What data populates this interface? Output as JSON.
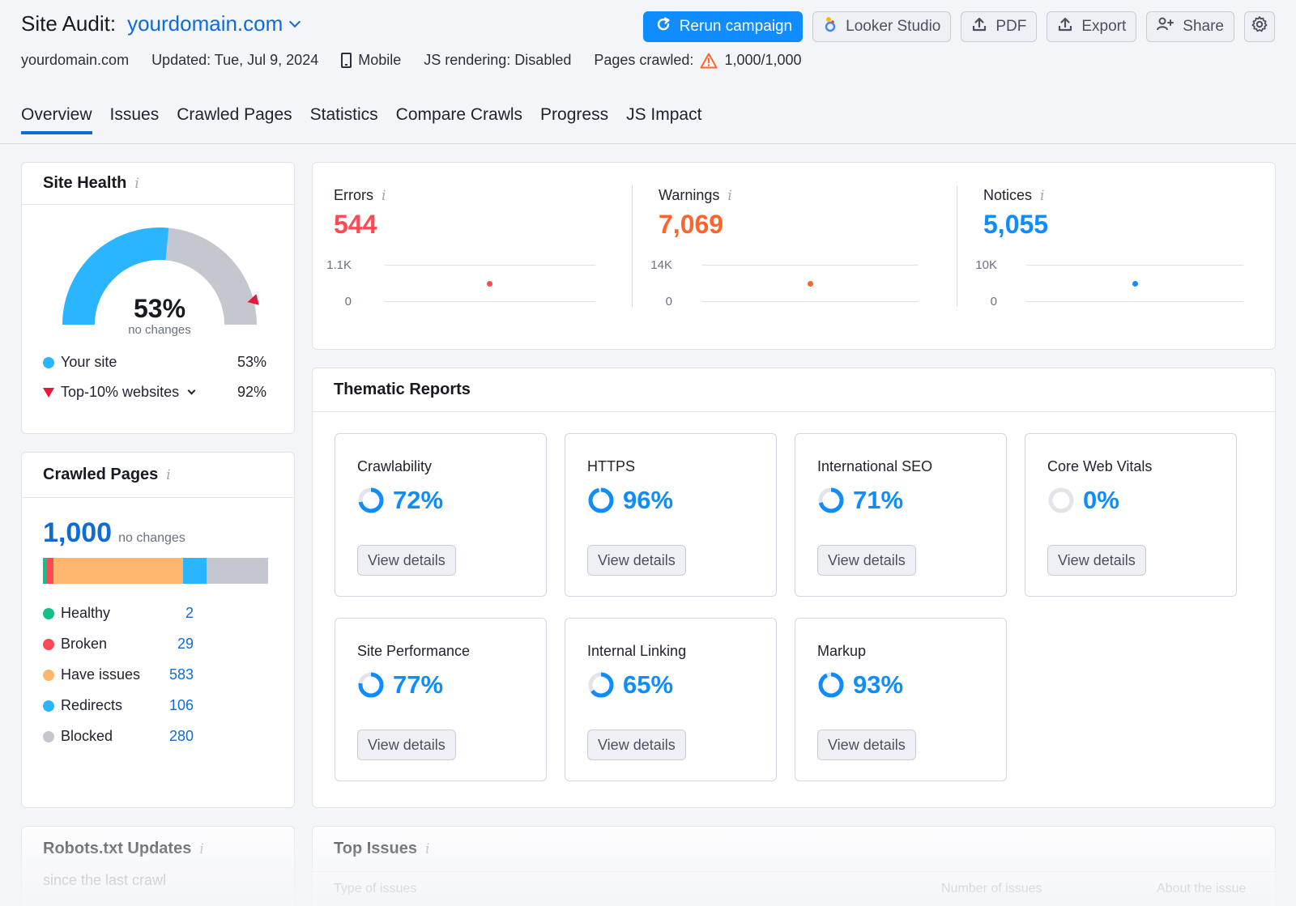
{
  "header": {
    "title": "Site Audit:",
    "domain": "yourdomain.com",
    "meta": {
      "domain": "yourdomain.com",
      "updated": "Updated: Tue, Jul 9, 2024",
      "device": "Mobile",
      "js_rendering": "JS rendering: Disabled",
      "pages_crawled_label": "Pages crawled:",
      "pages_crawled_value": "1,000/1,000"
    },
    "toolbar": {
      "rerun": "Rerun campaign",
      "looker": "Looker Studio",
      "pdf": "PDF",
      "export": "Export",
      "share": "Share"
    },
    "tabs": [
      "Overview",
      "Issues",
      "Crawled Pages",
      "Statistics",
      "Compare Crawls",
      "Progress",
      "JS Impact"
    ]
  },
  "site_health": {
    "title": "Site Health",
    "info": "i",
    "value": "53%",
    "fraction": 0.53,
    "top10_fraction": 0.92,
    "subtitle": "no changes",
    "legend": [
      {
        "label": "Your site",
        "value": "53%"
      },
      {
        "label": "Top-10% websites",
        "value": "92%"
      }
    ],
    "colors": {
      "site": "#2bb4ff",
      "rest": "#c5c7cf",
      "top10": "#e21b3c"
    }
  },
  "crawled_pages": {
    "title": "Crawled Pages",
    "info": "i",
    "total": "1,000",
    "subtitle": "no changes",
    "rows": [
      {
        "label": "Healthy",
        "value": "2",
        "count": 2,
        "color": "#13c08a"
      },
      {
        "label": "Broken",
        "value": "29",
        "count": 29,
        "color": "#ff4953"
      },
      {
        "label": "Have issues",
        "value": "583",
        "count": 583,
        "color": "#ffb56b"
      },
      {
        "label": "Redirects",
        "value": "106",
        "count": 106,
        "color": "#2bb4ff"
      },
      {
        "label": "Blocked",
        "value": "280",
        "count": 280,
        "color": "#c5c7cf"
      }
    ]
  },
  "metrics": [
    {
      "label": "Errors",
      "info": "i",
      "value": "544",
      "color": "#ff4953",
      "ticks": [
        "1.1K",
        "0"
      ]
    },
    {
      "label": "Warnings",
      "info": "i",
      "value": "7,069",
      "color": "#ff642d",
      "ticks": [
        "14K",
        "0"
      ]
    },
    {
      "label": "Notices",
      "info": "i",
      "value": "5,055",
      "color": "#0f8cff",
      "ticks": [
        "10K",
        "0"
      ]
    }
  ],
  "thematic": {
    "title": "Thematic Reports",
    "button": "View details",
    "reports": [
      {
        "name": "Crawlability",
        "score": "72%",
        "fraction": 0.72
      },
      {
        "name": "HTTPS",
        "score": "96%",
        "fraction": 0.96
      },
      {
        "name": "International SEO",
        "score": "71%",
        "fraction": 0.71
      },
      {
        "name": "Core Web Vitals",
        "score": "0%",
        "fraction": 0
      },
      {
        "name": "Site Performance",
        "score": "77%",
        "fraction": 0.77
      },
      {
        "name": "Internal Linking",
        "score": "65%",
        "fraction": 0.65
      },
      {
        "name": "Markup",
        "score": "93%",
        "fraction": 0.93
      }
    ]
  },
  "robots": {
    "title": "Robots.txt Updates",
    "info": "i",
    "subtitle": "since the last crawl"
  },
  "top_issues": {
    "title": "Top Issues",
    "info": "i",
    "columns": [
      "Type of issues",
      "Number of issues",
      "About the issue"
    ]
  }
}
